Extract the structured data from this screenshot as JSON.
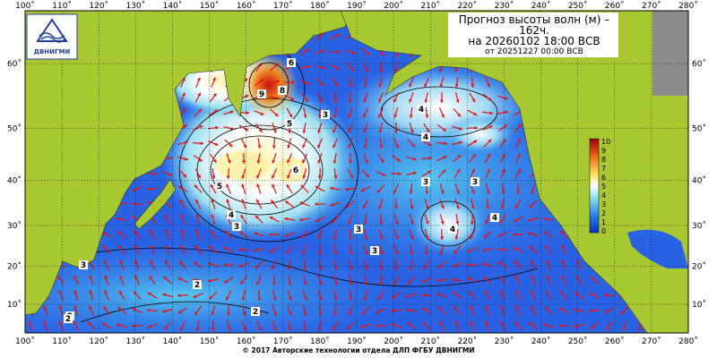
{
  "header": {
    "title": "Прогноз высоты волн (м) –",
    "lead": "162ч.",
    "valid": "на 20260102 18:00 ВСВ",
    "issued": "от 20251227 00:00 ВСВ"
  },
  "logo": "ДВНИГМИ",
  "map": {
    "lon_labels": [
      "100˚",
      "110˚",
      "120˚",
      "130˚",
      "140˚",
      "150˚",
      "160˚",
      "170˚",
      "180˚",
      "190˚",
      "200˚",
      "210˚",
      "220˚",
      "230˚",
      "240˚",
      "250˚",
      "260˚",
      "270˚",
      "280˚"
    ],
    "lat_labels": [
      "60˚",
      "50˚",
      "40˚",
      "30˚",
      "20˚",
      "10˚"
    ],
    "contour_labels": [
      "6",
      "9",
      "8",
      "5",
      "4",
      "6",
      "5",
      "4",
      "3",
      "2",
      "3",
      "3",
      "2",
      "3",
      "4",
      "4",
      "3",
      "4",
      "3",
      "2",
      "2",
      "3"
    ]
  },
  "colorbar": {
    "labels": [
      "10",
      "9",
      "8",
      "7",
      "6",
      "5",
      "4",
      "3",
      "2",
      "1",
      "0"
    ]
  },
  "footer": "© 2017 Авторские технологии отдела ДЛП ФГБУ ДВНИГМИ"
}
